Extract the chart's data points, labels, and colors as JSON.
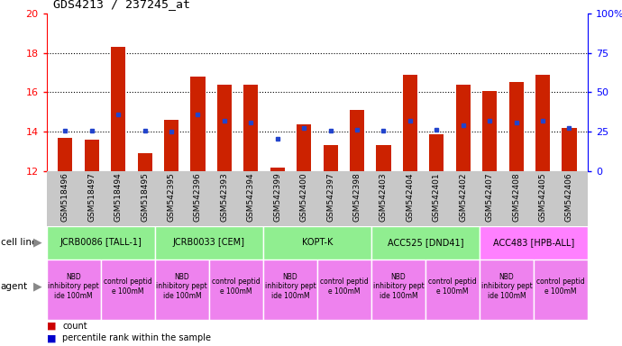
{
  "title": "GDS4213 / 237245_at",
  "samples": [
    "GSM518496",
    "GSM518497",
    "GSM518494",
    "GSM518495",
    "GSM542395",
    "GSM542396",
    "GSM542393",
    "GSM542394",
    "GSM542399",
    "GSM542400",
    "GSM542397",
    "GSM542398",
    "GSM542403",
    "GSM542404",
    "GSM542401",
    "GSM542402",
    "GSM542407",
    "GSM542408",
    "GSM542405",
    "GSM542406"
  ],
  "bar_heights": [
    13.7,
    13.6,
    18.3,
    12.9,
    14.6,
    16.8,
    16.4,
    16.4,
    12.15,
    14.35,
    13.3,
    15.1,
    13.3,
    16.9,
    13.85,
    16.4,
    16.05,
    16.5,
    16.9,
    14.2
  ],
  "blue_y": [
    14.05,
    14.05,
    14.85,
    14.05,
    14.0,
    14.85,
    14.55,
    14.45,
    13.65,
    14.2,
    14.05,
    14.1,
    14.05,
    14.55,
    14.1,
    14.3,
    14.55,
    14.45,
    14.55,
    14.2
  ],
  "cell_lines": [
    {
      "label": "JCRB0086 [TALL-1]",
      "start": 0,
      "end": 4,
      "color": "#90EE90"
    },
    {
      "label": "JCRB0033 [CEM]",
      "start": 4,
      "end": 8,
      "color": "#90EE90"
    },
    {
      "label": "KOPT-K",
      "start": 8,
      "end": 12,
      "color": "#90EE90"
    },
    {
      "label": "ACC525 [DND41]",
      "start": 12,
      "end": 16,
      "color": "#90EE90"
    },
    {
      "label": "ACC483 [HPB-ALL]",
      "start": 16,
      "end": 20,
      "color": "#FF80FF"
    }
  ],
  "agents": [
    {
      "label": "NBD\ninhibitory pept\nide 100mM",
      "start": 0,
      "end": 2,
      "color": "#EE82EE"
    },
    {
      "label": "control peptid\ne 100mM",
      "start": 2,
      "end": 4,
      "color": "#EE82EE"
    },
    {
      "label": "NBD\ninhibitory pept\nide 100mM",
      "start": 4,
      "end": 6,
      "color": "#EE82EE"
    },
    {
      "label": "control peptid\ne 100mM",
      "start": 6,
      "end": 8,
      "color": "#EE82EE"
    },
    {
      "label": "NBD\ninhibitory pept\nide 100mM",
      "start": 8,
      "end": 10,
      "color": "#EE82EE"
    },
    {
      "label": "control peptid\ne 100mM",
      "start": 10,
      "end": 12,
      "color": "#EE82EE"
    },
    {
      "label": "NBD\ninhibitory pept\nide 100mM",
      "start": 12,
      "end": 14,
      "color": "#EE82EE"
    },
    {
      "label": "control peptid\ne 100mM",
      "start": 14,
      "end": 16,
      "color": "#EE82EE"
    },
    {
      "label": "NBD\ninhibitory pept\nide 100mM",
      "start": 16,
      "end": 18,
      "color": "#EE82EE"
    },
    {
      "label": "control peptid\ne 100mM",
      "start": 18,
      "end": 20,
      "color": "#EE82EE"
    }
  ],
  "ylim": [
    12,
    20
  ],
  "yticks_left": [
    12,
    14,
    16,
    18,
    20
  ],
  "yticks_right_vals": [
    0,
    25,
    50,
    75,
    100
  ],
  "yticks_right_labels": [
    "0",
    "25",
    "50",
    "75",
    "100%"
  ],
  "bar_color": "#CC2200",
  "blue_color": "#2244CC",
  "sample_bg": "#C8C8C8",
  "cell_line_green": "#90EE90",
  "cell_line_pink": "#FF80FF",
  "agent_color": "#EE82EE",
  "legend_count_color": "#CC0000",
  "legend_pct_color": "#0000CC"
}
